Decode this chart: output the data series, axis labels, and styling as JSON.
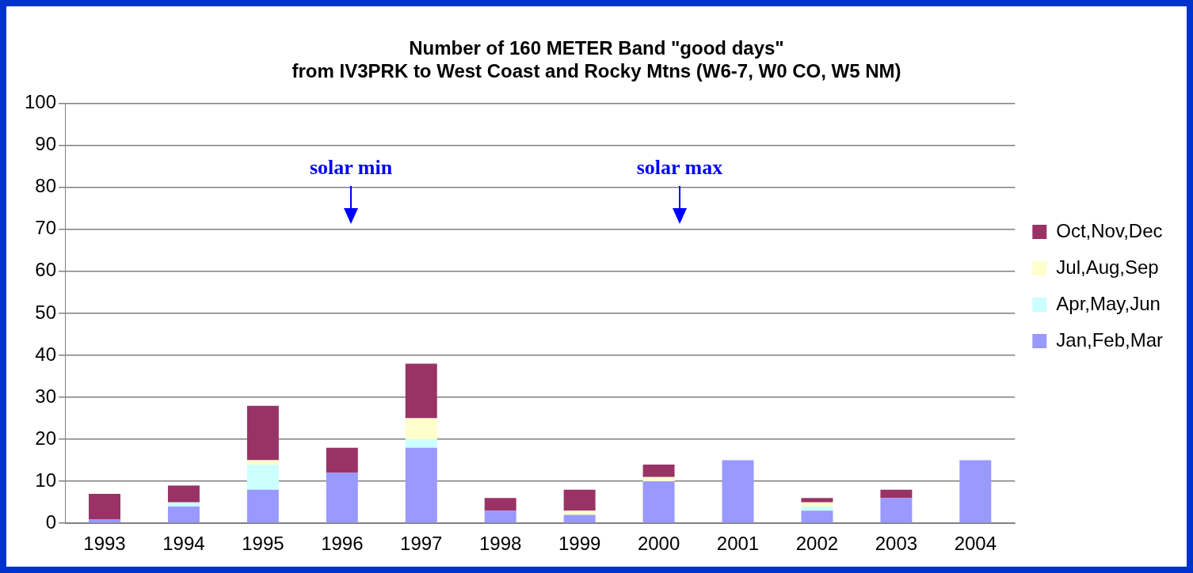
{
  "chart_data": {
    "type": "bar",
    "title": [
      "Number of 160 METER Band \"good days\"",
      "from IV3PRK to West Coast and Rocky Mtns (W6-7, W0 CO, W5 NM)"
    ],
    "categories": [
      "1993",
      "1994",
      "1995",
      "1996",
      "1997",
      "1998",
      "1999",
      "2000",
      "2001",
      "2002",
      "2003",
      "2004"
    ],
    "series": [
      {
        "name": "Jan,Feb,Mar",
        "color": "#9999ff",
        "values": [
          1,
          4,
          8,
          12,
          18,
          3,
          2,
          10,
          15,
          3,
          6,
          15
        ]
      },
      {
        "name": "Apr,May,Jun",
        "color": "#ccffff",
        "values": [
          0,
          1,
          6,
          0,
          2,
          0,
          0,
          0,
          0,
          1,
          0,
          0
        ]
      },
      {
        "name": "Jul,Aug,Sep",
        "color": "#ffffcc",
        "values": [
          0,
          0,
          1,
          0,
          5,
          0,
          1,
          1,
          0,
          1,
          0,
          0
        ]
      },
      {
        "name": "Oct,Nov,Dec",
        "color": "#993366",
        "values": [
          6,
          4,
          13,
          6,
          13,
          3,
          5,
          3,
          0,
          1,
          2,
          0
        ]
      }
    ],
    "stacked": true,
    "ylim": [
      0,
      100
    ],
    "yticks": [
      0,
      10,
      20,
      30,
      40,
      50,
      60,
      70,
      80,
      90,
      100
    ],
    "grid": "y",
    "legend": "right",
    "annotations": [
      "solar min",
      "solar max"
    ]
  }
}
